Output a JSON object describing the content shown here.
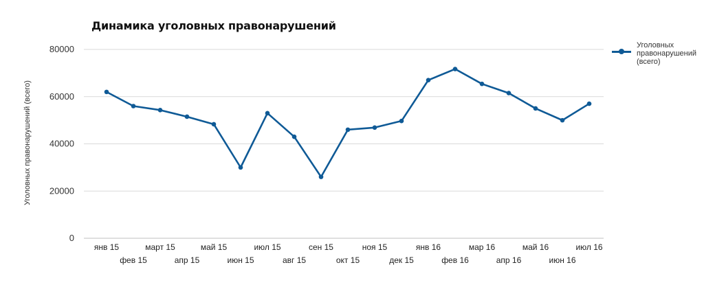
{
  "title": "Динамика уголовных правонарушений",
  "y_axis_label": "Уголовных правонарушений (всего)",
  "legend": {
    "label_lines": [
      "Уголовных",
      "правонарушений",
      "(всего)"
    ]
  },
  "colors": {
    "series": "#0f5a96",
    "grid": "#d9d9d9"
  },
  "chart_data": {
    "type": "line",
    "title": "Динамика уголовных правонарушений",
    "xlabel": "",
    "ylabel": "Уголовных правонарушений (всего)",
    "ylim": [
      0,
      80000
    ],
    "yticks": [
      0,
      20000,
      40000,
      60000,
      80000
    ],
    "grid": true,
    "legend_position": "right",
    "categories": [
      "янв 15",
      "фев 15",
      "март 15",
      "апр 15",
      "май 15",
      "июн 15",
      "июл 15",
      "авг 15",
      "сен 15",
      "окт 15",
      "ноя 15",
      "дек 15",
      "янв 16",
      "фев 16",
      "мар 16",
      "апр 16",
      "май 16",
      "июн 16",
      "июл 16"
    ],
    "series": [
      {
        "name": "Уголовных правонарушений (всего)",
        "values": [
          62000,
          56000,
          54300,
          51500,
          48300,
          30000,
          53000,
          43000,
          26000,
          46000,
          46900,
          49700,
          67000,
          71700,
          65400,
          61500,
          55000,
          50000,
          57000
        ]
      }
    ]
  }
}
